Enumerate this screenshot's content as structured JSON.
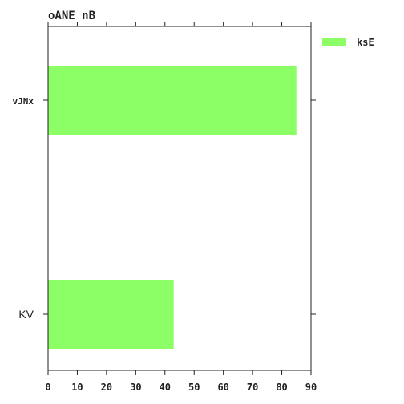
{
  "chart_data": {
    "type": "bar",
    "orientation": "horizontal",
    "title": "oANE nB",
    "categories": [
      "KV",
      "vJNx"
    ],
    "series": [
      {
        "name": "ksE",
        "values": [
          43,
          85
        ],
        "color": "#8cff66"
      }
    ],
    "xlabel": "",
    "ylabel": "",
    "xlim": [
      0,
      90
    ],
    "xticks": [
      "0",
      "10",
      "20",
      "30",
      "40",
      "50",
      "60",
      "70",
      "80",
      "90"
    ],
    "grid": false,
    "legend_position": "top-right"
  }
}
